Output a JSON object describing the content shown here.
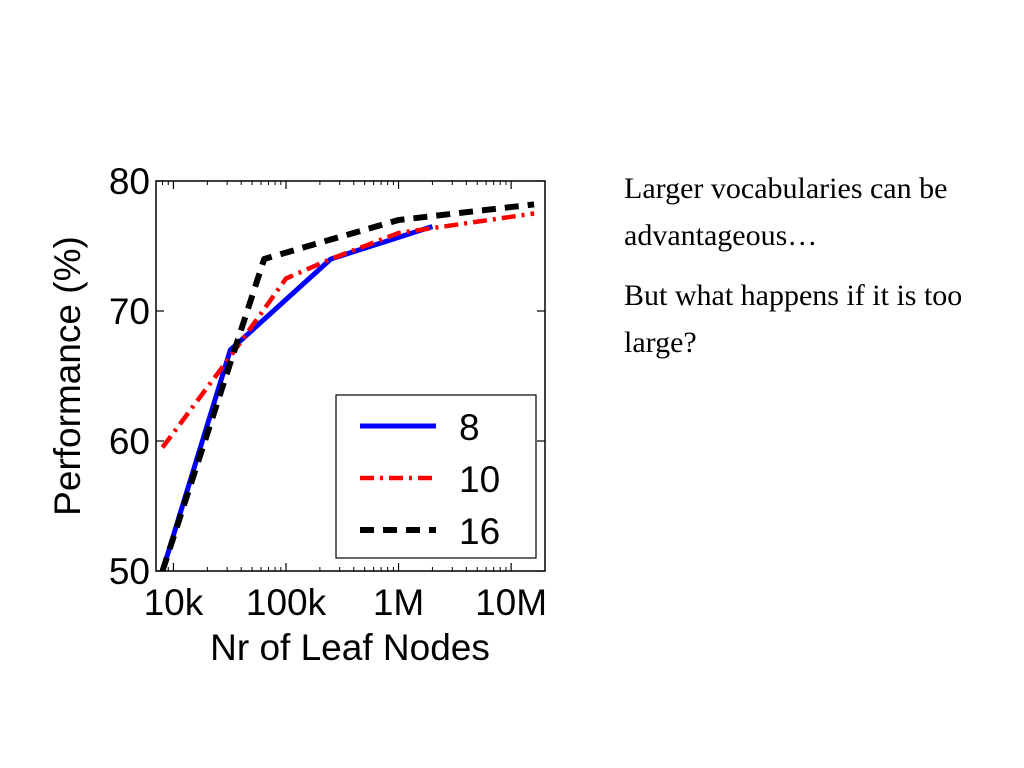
{
  "chart_data": {
    "type": "line",
    "xlabel": "Nr of Leaf Nodes",
    "ylabel": "Performance (%)",
    "xscale": "log",
    "xlim": [
      7000,
      20000000
    ],
    "ylim": [
      50,
      80
    ],
    "xticks": [
      10000,
      100000,
      1000000,
      10000000
    ],
    "xtick_labels": [
      "10k",
      "100k",
      "1M",
      "10M"
    ],
    "yticks": [
      50,
      60,
      70,
      80
    ],
    "ytick_labels": [
      "50",
      "60",
      "70",
      "80"
    ],
    "grid": false,
    "legend_position": "bottom-right",
    "series": [
      {
        "name": "8",
        "color": "#0000ff",
        "style": "solid",
        "x": [
          8000,
          32000,
          250000,
          2000000
        ],
        "y": [
          50,
          67,
          74,
          76.5
        ]
      },
      {
        "name": "10",
        "color": "#ff0000",
        "style": "dash-dot",
        "x": [
          8000,
          32000,
          100000,
          250000,
          1000000,
          16000000
        ],
        "y": [
          59.5,
          66.5,
          72.5,
          74,
          76,
          77.5
        ]
      },
      {
        "name": "16",
        "color": "#000000",
        "style": "dashed",
        "x": [
          8000,
          32000,
          64000,
          250000,
          1000000,
          16000000
        ],
        "y": [
          50,
          66,
          74,
          75.5,
          77,
          78.2
        ]
      }
    ]
  },
  "text": {
    "paragraph1": "Larger vocabularies can be advantageous…",
    "paragraph2": "But what happens if it is too large?"
  }
}
